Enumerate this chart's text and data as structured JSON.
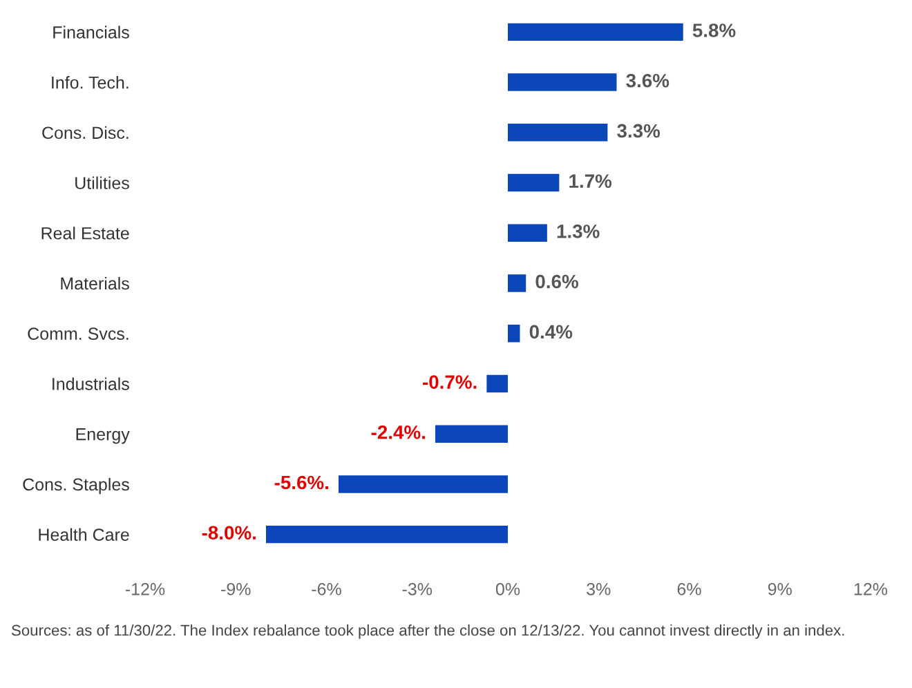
{
  "chart_data": {
    "type": "bar",
    "orientation": "horizontal",
    "categories": [
      "Financials",
      "Info. Tech.",
      "Cons. Disc.",
      "Utilities",
      "Real Estate",
      "Materials",
      "Comm. Svcs.",
      "Industrials",
      "Energy",
      "Cons. Staples",
      "Health Care"
    ],
    "values": [
      5.8,
      3.6,
      3.3,
      1.7,
      1.3,
      0.6,
      0.4,
      -0.7,
      -2.4,
      -5.6,
      -8.0
    ],
    "value_labels": [
      "5.8%",
      "3.6%",
      "3.3%",
      "1.7%",
      "1.3%",
      "0.6%",
      "0.4%",
      "-0.7%.",
      "-2.4%.",
      "-5.6%.",
      "-8.0%."
    ],
    "color": "#0b47b8",
    "xlim": [
      -12,
      12
    ],
    "xticks": [
      {
        "value": -12,
        "label": "-12%"
      },
      {
        "value": -9,
        "label": "-9%"
      },
      {
        "value": -6,
        "label": "-6%"
      },
      {
        "value": -3,
        "label": "-3%"
      },
      {
        "value": 0,
        "label": "0%"
      },
      {
        "value": 3,
        "label": "3%"
      },
      {
        "value": 6,
        "label": "6%"
      },
      {
        "value": 9,
        "label": "9%"
      },
      {
        "value": 12,
        "label": "12%"
      }
    ],
    "grid": false,
    "legend": false,
    "annotations": [
      "Sources: as of 11/30/22. The Index rebalance took place after the close on 12/13/22. You cannot invest directly in an index."
    ]
  }
}
